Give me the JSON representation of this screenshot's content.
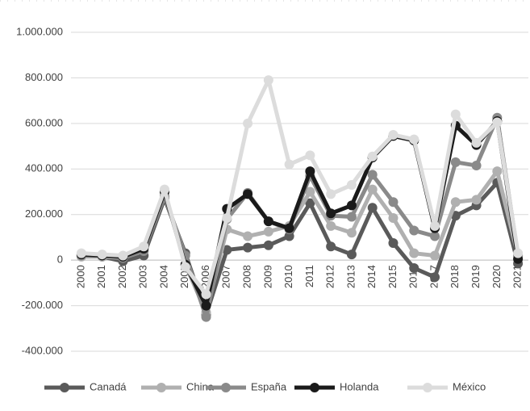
{
  "chart_data": {
    "type": "line",
    "categories": [
      "2000",
      "2001",
      "2002",
      "2003",
      "2004",
      "2005",
      "2006",
      "2007",
      "2008",
      "2009",
      "2010",
      "2011",
      "2012",
      "2013",
      "2014",
      "2015",
      "2016",
      "2017",
      "2018",
      "2019",
      "2020",
      "2021"
    ],
    "series": [
      {
        "name": "Canadá",
        "color": "#5a5a5a",
        "values": [
          20000,
          15000,
          -5000,
          20000,
          270000,
          30000,
          -240000,
          45000,
          55000,
          65000,
          105000,
          250000,
          60000,
          25000,
          230000,
          75000,
          -35000,
          -75000,
          195000,
          240000,
          340000,
          -15000
        ]
      },
      {
        "name": "China",
        "color": "#b0b0b0",
        "values": [
          15000,
          15000,
          10000,
          40000,
          300000,
          -20000,
          -230000,
          135000,
          105000,
          125000,
          150000,
          300000,
          150000,
          120000,
          310000,
          185000,
          30000,
          20000,
          255000,
          265000,
          390000,
          20000
        ]
      },
      {
        "name": "España",
        "color": "#8a8a8a",
        "values": [
          20000,
          20000,
          10000,
          40000,
          280000,
          20000,
          -250000,
          180000,
          295000,
          170000,
          135000,
          370000,
          195000,
          190000,
          375000,
          255000,
          130000,
          105000,
          430000,
          415000,
          625000,
          20000
        ]
      },
      {
        "name": "Holanda",
        "color": "#1a1a1a",
        "values": [
          25000,
          20000,
          15000,
          50000,
          300000,
          -20000,
          -200000,
          225000,
          290000,
          170000,
          140000,
          390000,
          205000,
          240000,
          450000,
          545000,
          525000,
          140000,
          590000,
          505000,
          610000,
          5000
        ]
      },
      {
        "name": "México",
        "color": "#dcdcdc",
        "values": [
          30000,
          25000,
          20000,
          60000,
          310000,
          -30000,
          -150000,
          185000,
          600000,
          790000,
          420000,
          460000,
          290000,
          330000,
          455000,
          550000,
          530000,
          150000,
          640000,
          515000,
          605000,
          30000
        ]
      }
    ],
    "ylim": [
      -400000,
      1000000
    ],
    "yticks": [
      {
        "value": -400000,
        "label": "-400.000"
      },
      {
        "value": -200000,
        "label": "-200.000"
      },
      0,
      {
        "value": 200000,
        "label": "200.000"
      },
      {
        "value": 400000,
        "label": "400.000"
      },
      {
        "value": 600000,
        "label": "600.000"
      },
      {
        "value": 800000,
        "label": "800.000"
      },
      {
        "value": 1000000,
        "label": "1.000.000"
      }
    ],
    "grid": true,
    "legend": "bottom"
  }
}
